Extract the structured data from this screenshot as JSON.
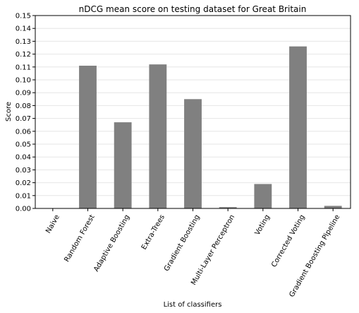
{
  "chart_data": {
    "type": "bar",
    "title": "nDCG mean score on testing dataset for Great Britain",
    "xlabel": "List of classifiers",
    "ylabel": "Score",
    "categories": [
      "Naive",
      "Random Forest",
      "Adaptive Boosting",
      "Extra-Trees",
      "Gradient Boosting",
      "Multi-Layer Perceptron",
      "Voting",
      "Corrected Voting",
      "Gradient Boosting Pipeline"
    ],
    "values": [
      0.0,
      0.111,
      0.067,
      0.112,
      0.085,
      0.001,
      0.019,
      0.126,
      0.002
    ],
    "ylim": [
      0,
      0.15
    ],
    "yticks": [
      "0.00",
      "0.01",
      "0.02",
      "0.03",
      "0.04",
      "0.05",
      "0.06",
      "0.07",
      "0.08",
      "0.09",
      "0.10",
      "0.11",
      "0.12",
      "0.13",
      "0.14",
      "0.15"
    ],
    "grid": "horizontal",
    "bar_color": "#808080",
    "grid_color": "#e6e6e6"
  }
}
